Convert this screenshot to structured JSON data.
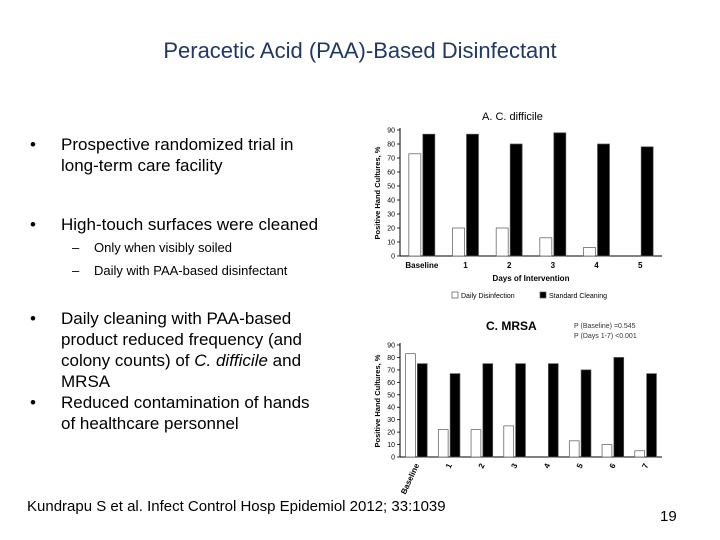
{
  "slide": {
    "title": "Peracetic Acid (PAA)-Based Disinfectant",
    "page_number": "19",
    "citation": "Kundrapu S et al. Infect Control Hosp Epidemiol 2012; 33:1039"
  },
  "bullets": [
    {
      "lines": [
        "Prospective randomized trial in",
        "long-term care facility"
      ]
    },
    {
      "lines": [
        "High-touch surfaces were cleaned"
      ],
      "sub": [
        "Only when visibly soiled",
        "Daily with PAA-based disinfectant"
      ]
    },
    {
      "lines": [
        "Daily cleaning with PAA-based",
        "product reduced frequency (and",
        "colony counts) of C. difficile and",
        "MRSA"
      ]
    },
    {
      "lines": [
        "Reduced contamination of hands",
        "of healthcare personnel"
      ]
    }
  ],
  "chart_data": [
    {
      "type": "bar",
      "title": "A. C. difficile",
      "ylabel": "Positive Hand Cultures, %",
      "xlabel": "Days of Intervention",
      "categories": [
        "Baseline",
        "1",
        "2",
        "3",
        "4",
        "5"
      ],
      "ylim": [
        0,
        90
      ],
      "yticks": [
        0,
        10,
        20,
        30,
        40,
        50,
        60,
        70,
        80,
        90
      ],
      "series": [
        {
          "name": "Daily Disinfection",
          "color": "#ffffff",
          "values": [
            73,
            20,
            20,
            13,
            6,
            null
          ]
        },
        {
          "name": "Standard Cleaning",
          "color": "#000000",
          "values": [
            87,
            87,
            80,
            88,
            80,
            78
          ]
        }
      ],
      "legend_position": "bottom",
      "grid": false
    },
    {
      "type": "bar",
      "title": "C. MRSA",
      "ylabel": "Positive Hand Cultures, %",
      "annotations": [
        "P (Baseline) =0.545",
        "P (Days 1-7) <0.001"
      ],
      "categories": [
        "Baseline",
        "1",
        "2",
        "3",
        "4",
        "5",
        "6",
        "7"
      ],
      "ylim": [
        0,
        90
      ],
      "yticks": [
        0,
        10,
        20,
        30,
        40,
        50,
        60,
        70,
        80,
        90
      ],
      "series": [
        {
          "name": "Daily Disinfection",
          "color": "#ffffff",
          "values": [
            83,
            22,
            22,
            25,
            null,
            13,
            10,
            5
          ]
        },
        {
          "name": "Standard Cleaning",
          "color": "#000000",
          "values": [
            75,
            67,
            75,
            75,
            75,
            70,
            80,
            67
          ]
        }
      ],
      "grid": false
    }
  ]
}
